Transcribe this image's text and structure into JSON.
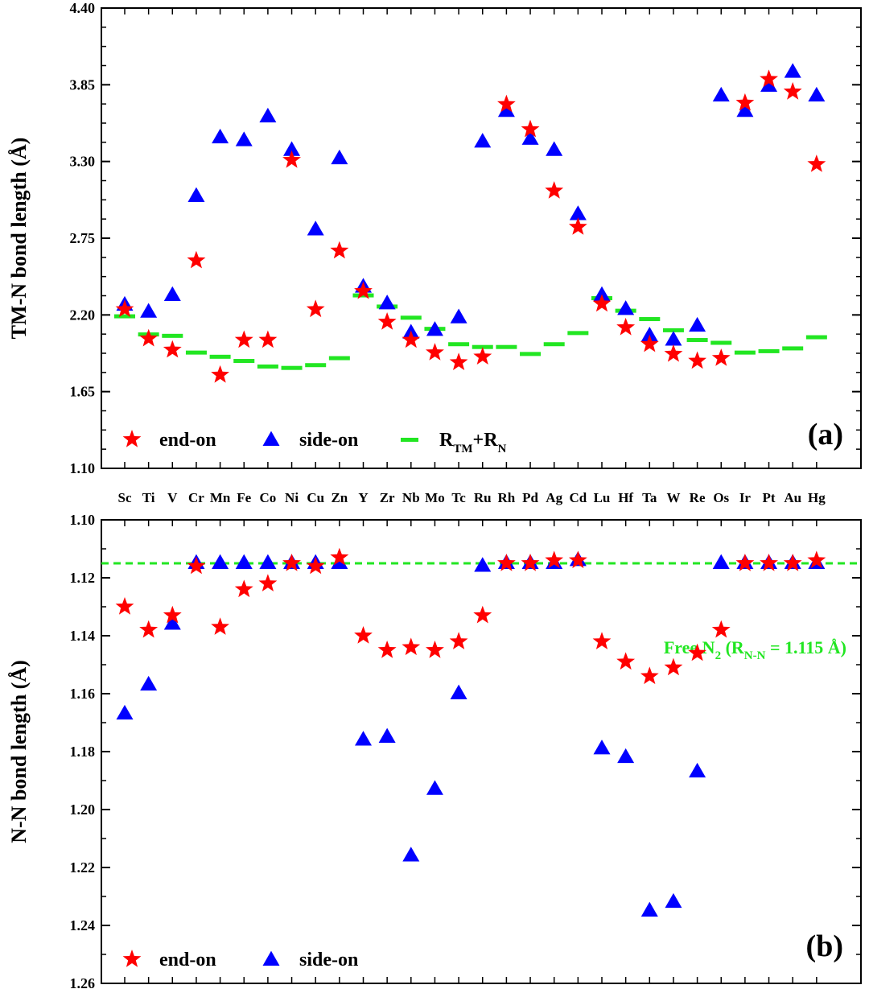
{
  "chart_data": [
    {
      "type": "scatter",
      "panel_label": "(a)",
      "ylabel": "TM-N bond length (Å)",
      "ylim": [
        1.1,
        4.4
      ],
      "yticks": [
        "1.10",
        "1.65",
        "2.20",
        "2.75",
        "3.30",
        "3.85",
        "4.40"
      ],
      "categories": [
        "Sc",
        "Ti",
        "V",
        "Cr",
        "Mn",
        "Fe",
        "Co",
        "Ni",
        "Cu",
        "Zn",
        "Y",
        "Zr",
        "Nb",
        "Mo",
        "Tc",
        "Ru",
        "Rh",
        "Pd",
        "Ag",
        "Cd",
        "Lu",
        "Hf",
        "Ta",
        "W",
        "Re",
        "Os",
        "Ir",
        "Pt",
        "Au",
        "Hg"
      ],
      "series": [
        {
          "name": "end-on",
          "color": "#ff0000",
          "marker": "star",
          "values": [
            2.24,
            2.03,
            1.95,
            2.59,
            1.77,
            2.02,
            2.02,
            3.31,
            2.24,
            2.66,
            2.37,
            2.15,
            2.02,
            1.93,
            1.86,
            1.9,
            3.71,
            3.53,
            3.09,
            2.83,
            2.28,
            2.11,
            1.99,
            1.92,
            1.87,
            1.89,
            3.72,
            3.89,
            3.8,
            3.28
          ]
        },
        {
          "name": "side-on",
          "color": "#0000ff",
          "marker": "triangle",
          "values": [
            2.27,
            2.22,
            2.34,
            3.05,
            3.47,
            3.45,
            3.62,
            3.38,
            2.81,
            3.32,
            2.4,
            2.28,
            2.07,
            2.09,
            2.18,
            3.44,
            3.66,
            3.46,
            3.38,
            2.92,
            2.34,
            2.24,
            2.05,
            2.02,
            2.12,
            3.77,
            3.66,
            3.84,
            3.94,
            3.77
          ]
        },
        {
          "name": "R_TM+R_N",
          "color": "#22e622",
          "marker": "dash",
          "values": [
            2.19,
            2.06,
            2.05,
            1.93,
            1.9,
            1.87,
            1.83,
            1.82,
            1.84,
            1.89,
            2.34,
            2.26,
            2.18,
            2.1,
            1.99,
            1.97,
            1.97,
            1.92,
            1.99,
            2.07,
            2.32,
            2.23,
            2.17,
            2.09,
            2.02,
            2.0,
            1.93,
            1.94,
            1.96,
            2.04
          ]
        }
      ],
      "legend": {
        "end_on": "end-on",
        "side_on": "side-on",
        "r_sum_main": "R",
        "r_sum_sub1": "TM",
        "r_sum_plus": "+R",
        "r_sum_sub2": "N"
      }
    },
    {
      "type": "scatter",
      "panel_label": "(b)",
      "ylabel": "N-N bond length (Å)",
      "ylim": [
        1.1,
        1.26
      ],
      "y_inverted": true,
      "yticks": [
        "1.10",
        "1.12",
        "1.14",
        "1.16",
        "1.18",
        "1.20",
        "1.22",
        "1.24",
        "1.26"
      ],
      "categories": [
        "Sc",
        "Ti",
        "V",
        "Cr",
        "Mn",
        "Fe",
        "Co",
        "Ni",
        "Cu",
        "Zn",
        "Y",
        "Zr",
        "Nb",
        "Mo",
        "Tc",
        "Ru",
        "Rh",
        "Pd",
        "Ag",
        "Cd",
        "Lu",
        "Hf",
        "Ta",
        "W",
        "Re",
        "Os",
        "Ir",
        "Pt",
        "Au",
        "Hg"
      ],
      "series": [
        {
          "name": "end-on",
          "color": "#ff0000",
          "marker": "star",
          "values": [
            1.13,
            1.138,
            1.133,
            1.116,
            1.137,
            1.124,
            1.122,
            1.115,
            1.116,
            1.113,
            1.14,
            1.145,
            1.144,
            1.145,
            1.142,
            1.133,
            1.115,
            1.115,
            1.114,
            1.114,
            1.142,
            1.149,
            1.154,
            1.151,
            1.146,
            1.138,
            1.115,
            1.115,
            1.115,
            1.114
          ]
        },
        {
          "name": "side-on",
          "color": "#0000ff",
          "marker": "triangle",
          "values": [
            1.167,
            1.157,
            1.136,
            1.115,
            1.115,
            1.115,
            1.115,
            1.115,
            1.115,
            1.115,
            1.176,
            1.175,
            1.216,
            1.193,
            1.16,
            1.116,
            1.115,
            1.115,
            1.115,
            1.114,
            1.179,
            1.182,
            1.235,
            1.232,
            1.187,
            1.115,
            1.115,
            1.115,
            1.115,
            1.115
          ]
        }
      ],
      "reference_line": {
        "value": 1.115,
        "color": "#22e622",
        "label_main": "Free N",
        "label_sub": "2",
        "label_rest_open": " (R",
        "label_rest_sub": "N-N",
        "label_rest_close": " = 1.115 Å)"
      },
      "legend": {
        "end_on": "end-on",
        "side_on": "side-on"
      }
    }
  ]
}
